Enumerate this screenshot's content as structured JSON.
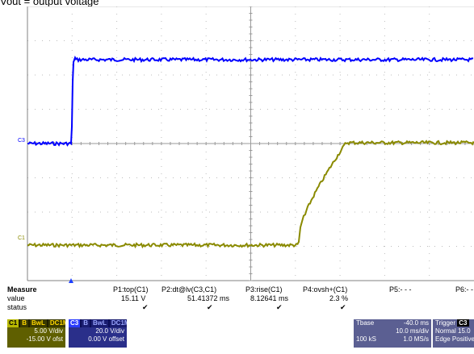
{
  "title": "Vout = output voltage",
  "channels": {
    "c3": {
      "marker": "C3",
      "color": "#0000ff"
    },
    "c1": {
      "marker": "C1",
      "color": "#8a8a00"
    }
  },
  "measure": {
    "header": [
      "Measure",
      "P1:top(C1)",
      "P2:dt@lv(C3,C1)",
      "P3:rise(C1)",
      "P4:ovsh+(C1)",
      "P5:- - -",
      "P6:- -"
    ],
    "value_label": "value",
    "values": [
      "15.11 V",
      "51.41372 ms",
      "8.12641 ms",
      "2.3 %"
    ],
    "status_label": "status",
    "status_icon": "check-icon"
  },
  "ch1_box": {
    "name": "C1",
    "tags": [
      "B",
      "BwL",
      "DC1M"
    ],
    "vdiv": "5.00 V/div",
    "offset": "-15.00 V ofst",
    "color": "#b8b800"
  },
  "ch3_box": {
    "name": "C3",
    "tags": [
      "B",
      "BwL",
      "DC1M"
    ],
    "vdiv": "20.0 V/div",
    "offset": "0.00 V offset",
    "color": "#2a3cff"
  },
  "tbase": {
    "label": "Tbase",
    "delay": "-40.0 ms",
    "tdiv": "10.0 ms/div",
    "samples": "100 kS",
    "rate": "1.0 MS/s"
  },
  "trigger": {
    "label": "Trigger",
    "badge": "C3",
    "mode": "Normal",
    "level": "15.0",
    "type": "Edge",
    "slope": "Positive"
  }
}
